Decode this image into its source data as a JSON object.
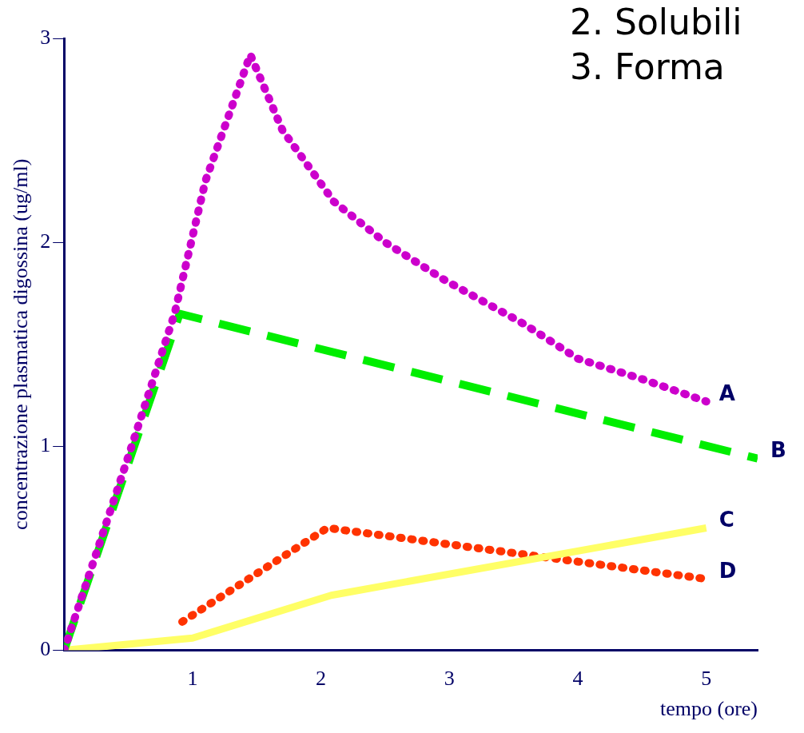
{
  "chart_data": {
    "type": "line",
    "xlabel": "tempo (ore)",
    "ylabel": "concentrazione plasmatica digossina (ug/ml)",
    "xlim": [
      0,
      5.4
    ],
    "xticks": [
      1,
      2,
      3,
      4,
      5
    ],
    "ylim": [
      0,
      3
    ],
    "yticks": [
      0,
      1,
      2,
      3
    ],
    "grid": false,
    "legend": false,
    "marker": "none",
    "annotations": [
      "2. Solubili",
      "3. Forma"
    ],
    "series": [
      {
        "name": "A",
        "color": "#cc00cc",
        "line_style": "dotted",
        "x": [
          0,
          0.5,
          0.86,
          1.1,
          1.45,
          1.7,
          2.1,
          2.5,
          2.95,
          3.58,
          4.0,
          4.5,
          5.0
        ],
        "values": [
          0,
          0.95,
          1.65,
          2.3,
          2.92,
          2.55,
          2.2,
          2.0,
          1.82,
          1.6,
          1.43,
          1.33,
          1.22
        ]
      },
      {
        "name": "B",
        "color": "#00ee00",
        "line_style": "dashed",
        "x": [
          0,
          0.9,
          5.4
        ],
        "values": [
          0,
          1.65,
          0.94
        ]
      },
      {
        "name": "C",
        "color": "#ffff66",
        "line_style": "solid",
        "x": [
          0,
          1.0,
          2.08,
          5.0
        ],
        "values": [
          0,
          0.06,
          0.27,
          0.6
        ]
      },
      {
        "name": "D",
        "color": "#ff3300",
        "line_style": "dotted",
        "x": [
          0.92,
          2.05,
          5.0
        ],
        "values": [
          0.14,
          0.6,
          0.35
        ]
      }
    ]
  }
}
